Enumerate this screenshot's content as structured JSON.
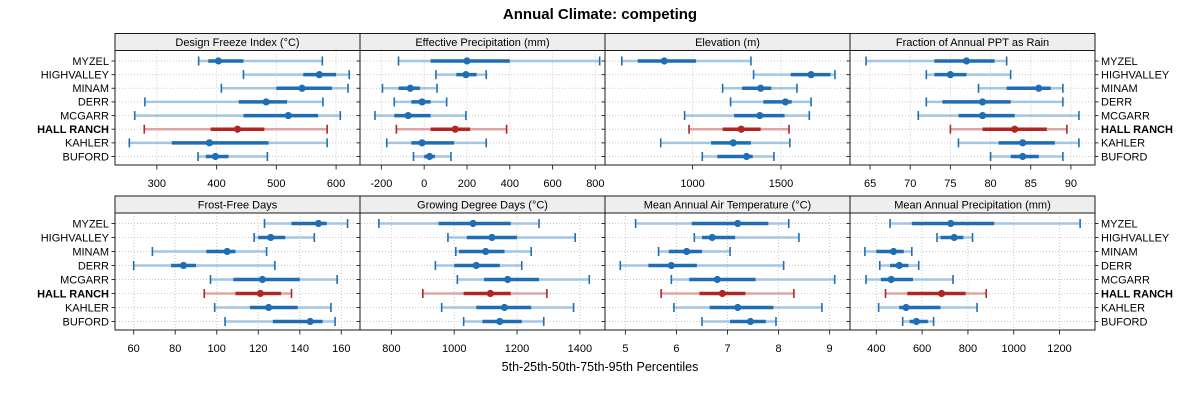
{
  "title": "Annual Climate: competing",
  "caption": "5th-25th-50th-75th-95th Percentiles",
  "colors": {
    "normal": "#1f6eb4",
    "normal_light": "#a5c6e2",
    "highlight": "#b22525",
    "highlight_light": "#dda6a6",
    "grid": "#c9c9c9",
    "strip_bg": "#eeeeee",
    "border": "#1a1a1a",
    "tick": "#333333",
    "text": "#000000"
  },
  "chart_data": {
    "type": "interval-dotplot",
    "percentile_labels": [
      "5th",
      "25th",
      "50th",
      "75th",
      "95th"
    ],
    "locations": [
      "MYZEL",
      "HIGHVALLEY",
      "MINAM",
      "DERR",
      "MCGARR",
      "HALL RANCH",
      "KAHLER",
      "BUFORD"
    ],
    "highlight_location": "HALL RANCH",
    "legend_position": "none",
    "grid_on": true,
    "panels": [
      {
        "title": "Design Freeze Index (°C)",
        "grid": {
          "row": 0,
          "col": 0
        },
        "xlim": [
          230,
          640
        ],
        "ticks": [
          300,
          400,
          500,
          600
        ],
        "values": [
          [
            370,
            386,
            403,
            445,
            577
          ],
          [
            445,
            545,
            572,
            600,
            622
          ],
          [
            408,
            500,
            543,
            593,
            620
          ],
          [
            280,
            437,
            483,
            518,
            578
          ],
          [
            263,
            445,
            520,
            570,
            607
          ],
          [
            279,
            390,
            435,
            480,
            585
          ],
          [
            254,
            325,
            388,
            487,
            585
          ],
          [
            369,
            382,
            398,
            420,
            485
          ]
        ]
      },
      {
        "title": "Effective Precipitation (mm)",
        "grid": {
          "row": 0,
          "col": 1
        },
        "xlim": [
          -300,
          845
        ],
        "ticks": [
          -200,
          0,
          200,
          400,
          600,
          800
        ],
        "values": [
          [
            -120,
            30,
            200,
            400,
            820
          ],
          [
            55,
            150,
            195,
            245,
            290
          ],
          [
            -195,
            -120,
            -65,
            -20,
            60
          ],
          [
            -140,
            -60,
            -10,
            30,
            105
          ],
          [
            -230,
            -140,
            -75,
            30,
            195
          ],
          [
            -130,
            30,
            145,
            215,
            385
          ],
          [
            -175,
            -60,
            -10,
            140,
            290
          ],
          [
            -50,
            0,
            25,
            50,
            125
          ]
        ]
      },
      {
        "title": "Elevation (m)",
        "grid": {
          "row": 0,
          "col": 2
        },
        "xlim": [
          505,
          1890
        ],
        "ticks": [
          1000,
          1500
        ],
        "values": [
          [
            600,
            690,
            840,
            1020,
            1330
          ],
          [
            1345,
            1555,
            1670,
            1780,
            1805
          ],
          [
            1170,
            1280,
            1385,
            1445,
            1590
          ],
          [
            1215,
            1400,
            1525,
            1560,
            1670
          ],
          [
            955,
            1235,
            1380,
            1520,
            1660
          ],
          [
            980,
            1170,
            1275,
            1385,
            1545
          ],
          [
            820,
            1105,
            1230,
            1330,
            1550
          ],
          [
            1055,
            1140,
            1305,
            1340,
            1460
          ]
        ]
      },
      {
        "title": "Fraction of Annual PPT as Rain",
        "grid": {
          "row": 0,
          "col": 3
        },
        "xlim": [
          62.5,
          93
        ],
        "ticks": [
          65,
          70,
          75,
          80,
          85,
          90
        ],
        "values": [
          [
            64.5,
            73,
            77,
            80.5,
            82
          ],
          [
            72,
            73,
            75,
            77,
            82.5
          ],
          [
            78.5,
            82,
            86,
            87.5,
            89
          ],
          [
            72,
            74,
            79,
            82.5,
            89
          ],
          [
            71,
            76,
            79,
            83,
            91
          ],
          [
            75,
            79,
            83,
            87,
            89.5
          ],
          [
            76,
            81,
            84,
            88,
            91
          ],
          [
            80,
            82.5,
            84,
            86,
            89
          ]
        ]
      },
      {
        "title": "Frost-Free Days",
        "grid": {
          "row": 1,
          "col": 0
        },
        "xlim": [
          51,
          169
        ],
        "ticks": [
          60,
          80,
          100,
          120,
          140,
          160
        ],
        "values": [
          [
            123,
            136,
            149,
            153,
            163
          ],
          [
            118,
            120,
            126,
            133,
            147
          ],
          [
            69,
            95,
            105,
            109,
            124
          ],
          [
            60,
            78,
            84,
            90,
            128
          ],
          [
            97,
            108,
            122,
            140,
            158
          ],
          [
            94,
            109,
            121,
            131,
            136
          ],
          [
            99,
            116,
            125,
            139,
            155
          ],
          [
            104,
            127,
            145,
            151,
            157
          ]
        ]
      },
      {
        "title": "Growing Degree Days (°C)",
        "grid": {
          "row": 1,
          "col": 1
        },
        "xlim": [
          700,
          1480
        ],
        "ticks": [
          800,
          1000,
          1200,
          1400
        ],
        "values": [
          [
            760,
            950,
            1060,
            1180,
            1270
          ],
          [
            980,
            1040,
            1120,
            1200,
            1385
          ],
          [
            1005,
            1015,
            1100,
            1160,
            1245
          ],
          [
            940,
            1000,
            1070,
            1145,
            1215
          ],
          [
            1010,
            1095,
            1170,
            1270,
            1430
          ],
          [
            900,
            1030,
            1115,
            1180,
            1295
          ],
          [
            960,
            1070,
            1160,
            1245,
            1380
          ],
          [
            1030,
            1090,
            1145,
            1215,
            1285
          ]
        ]
      },
      {
        "title": "Mean Annual Air Temperature (°C)",
        "grid": {
          "row": 1,
          "col": 2
        },
        "xlim": [
          4.6,
          9.4
        ],
        "ticks": [
          5,
          6,
          7,
          8,
          9
        ],
        "values": [
          [
            5.2,
            6.3,
            7.2,
            7.8,
            8.2
          ],
          [
            6.35,
            6.5,
            6.7,
            7.15,
            8.4
          ],
          [
            5.65,
            5.85,
            6.2,
            6.5,
            7.05
          ],
          [
            4.9,
            5.45,
            5.9,
            6.4,
            8.1
          ],
          [
            5.9,
            6.25,
            6.8,
            7.55,
            9.1
          ],
          [
            5.7,
            6.45,
            6.9,
            7.35,
            8.3
          ],
          [
            5.95,
            6.65,
            7.2,
            7.9,
            8.85
          ],
          [
            6.5,
            7.05,
            7.45,
            7.75,
            7.95
          ]
        ]
      },
      {
        "title": "Mean Annual Precipitation (mm)",
        "grid": {
          "row": 1,
          "col": 3
        },
        "xlim": [
          285,
          1355
        ],
        "ticks": [
          400,
          600,
          800,
          1000,
          1200
        ],
        "values": [
          [
            460,
            555,
            725,
            915,
            1290
          ],
          [
            665,
            680,
            740,
            780,
            820
          ],
          [
            350,
            400,
            475,
            520,
            555
          ],
          [
            415,
            460,
            500,
            540,
            585
          ],
          [
            355,
            420,
            465,
            560,
            735
          ],
          [
            440,
            535,
            685,
            790,
            880
          ],
          [
            410,
            500,
            530,
            680,
            840
          ],
          [
            515,
            545,
            575,
            625,
            650
          ]
        ]
      }
    ]
  }
}
